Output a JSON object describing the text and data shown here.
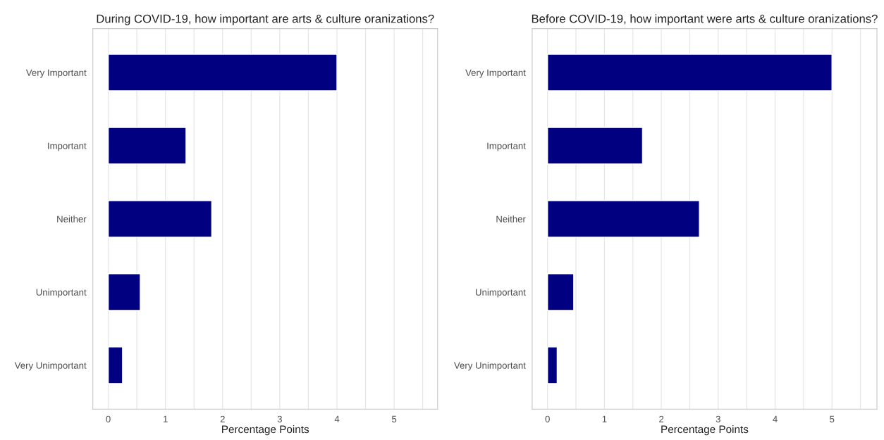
{
  "chart_data": [
    {
      "type": "bar",
      "orientation": "horizontal",
      "title": "During COVID-19, how important are arts & culture oranizations?",
      "xlabel": "Percentage Points",
      "categories": [
        "Very Important",
        "Important",
        "Neither",
        "Unimportant",
        "Very Unimportant"
      ],
      "values": [
        4.0,
        1.36,
        1.81,
        0.56,
        0.25
      ],
      "color": "#000080",
      "xlim": [
        -0.27,
        5.76
      ],
      "xticks": [
        0,
        {
          "value": 0.5,
          "label": null
        },
        1,
        {
          "value": 1.5,
          "label": null
        },
        2,
        {
          "value": 2.5,
          "label": null
        },
        3,
        {
          "value": 3.5,
          "label": null
        },
        4,
        {
          "value": 4.5,
          "label": null
        },
        5,
        {
          "value": 5.5,
          "label": null
        }
      ],
      "grid": "x"
    },
    {
      "type": "bar",
      "orientation": "horizontal",
      "title": "Before COVID-19, how important were arts & culture oranizations?",
      "xlabel": "Percentage Points",
      "categories": [
        "Very Important",
        "Important",
        "Neither",
        "Unimportant",
        "Very Unimportant"
      ],
      "values": [
        5.0,
        1.67,
        2.67,
        0.46,
        0.17
      ],
      "color": "#000080",
      "xlim": [
        -0.27,
        5.79
      ],
      "xticks": [
        0,
        {
          "value": 0.5,
          "label": null
        },
        1,
        {
          "value": 1.5,
          "label": null
        },
        2,
        {
          "value": 2.5,
          "label": null
        },
        3,
        {
          "value": 3.5,
          "label": null
        },
        4,
        {
          "value": 4.5,
          "label": null
        },
        5,
        {
          "value": 5.5,
          "label": null
        }
      ],
      "grid": "x"
    }
  ]
}
